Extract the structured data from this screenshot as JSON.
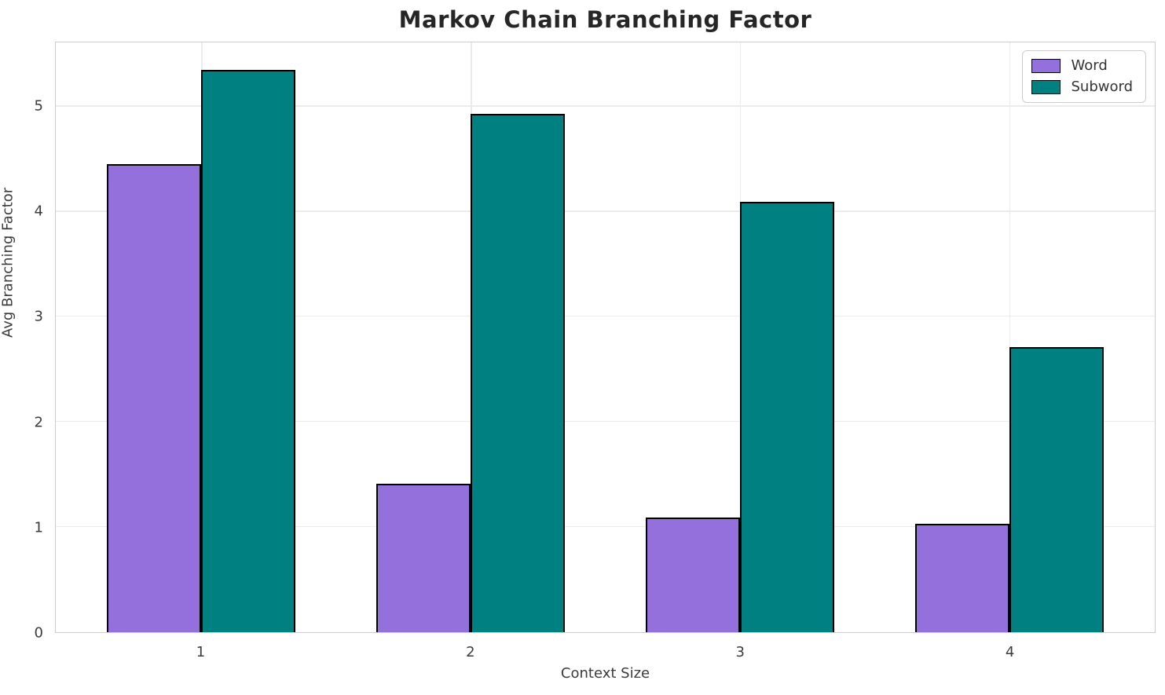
{
  "chart_data": {
    "type": "bar",
    "title": "Markov Chain Branching Factor",
    "xlabel": "Context Size",
    "ylabel": "Avg Branching Factor",
    "categories": [
      "1",
      "2",
      "3",
      "4"
    ],
    "series": [
      {
        "name": "Word",
        "color": "#9370DB",
        "values": [
          4.45,
          1.41,
          1.09,
          1.03
        ]
      },
      {
        "name": "Subword",
        "color": "#008080",
        "values": [
          5.35,
          4.93,
          4.09,
          2.71
        ]
      }
    ],
    "yticks": [
      0,
      1,
      2,
      3,
      4,
      5
    ],
    "ylim": [
      0,
      5.61
    ],
    "xlim": [
      -0.54,
      3.54
    ],
    "bar_width": 0.35,
    "grid": true,
    "legend_position": "upper right"
  },
  "style_colors": {
    "bar_edge": "#000000",
    "grid": "#ebebeb",
    "spine": "#cccccc",
    "title_text": "#262626",
    "tick_text": "#3b3b3b"
  }
}
